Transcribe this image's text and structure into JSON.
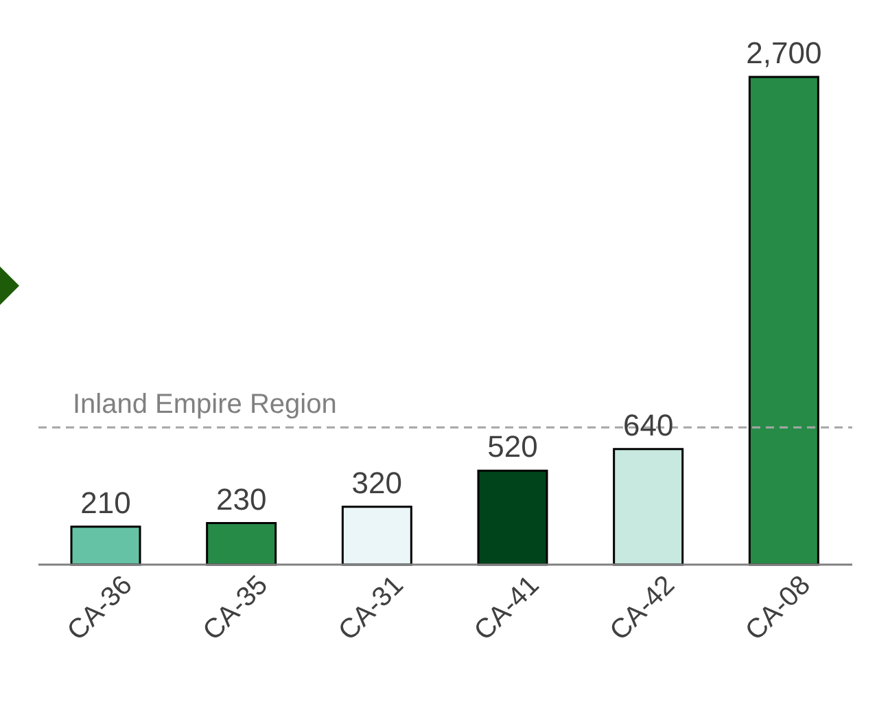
{
  "chart_data": {
    "type": "bar",
    "categories": [
      "CA-36",
      "CA-35",
      "CA-31",
      "CA-41",
      "CA-42",
      "CA-08"
    ],
    "values": [
      210,
      230,
      320,
      520,
      640,
      2700
    ],
    "value_labels": [
      "210",
      "230",
      "320",
      "520",
      "640",
      "2,700"
    ],
    "colors": [
      "#66c2a5",
      "#268b47",
      "#eaf6f7",
      "#00441b",
      "#c7e9e0",
      "#268b47"
    ],
    "ref_lines": [
      {
        "axis": "y",
        "value": 760,
        "label": "Inland Empire Region",
        "color": "#a6a6a6",
        "line_style": "dashed"
      }
    ]
  }
}
